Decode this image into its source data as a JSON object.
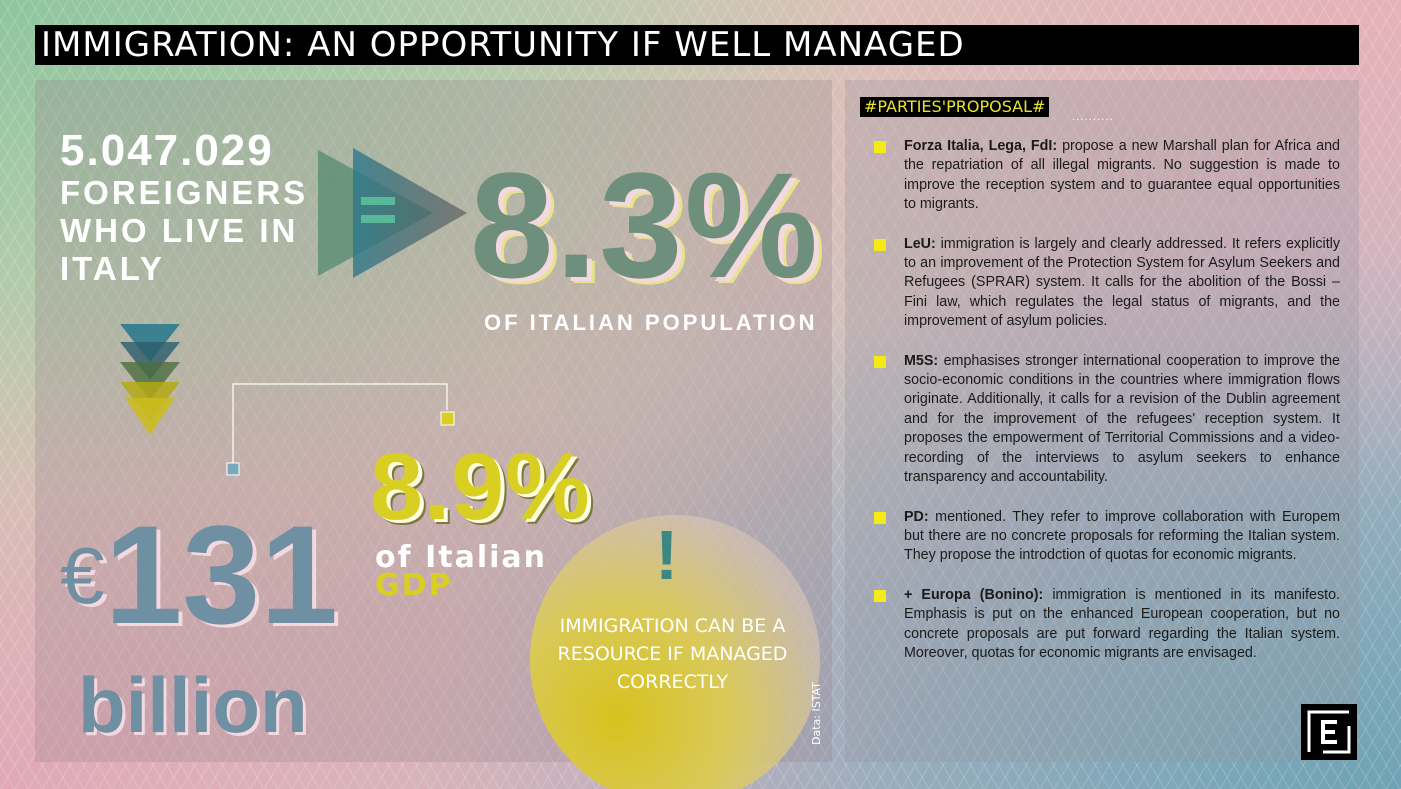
{
  "title": "IMMIGRATION: AN OPPORTUNITY IF WELL MANAGED",
  "left": {
    "foreigners_count": "5.047.029",
    "foreigners_label": "FOREIGNERS WHO LIVE IN ITALY",
    "equals_icon": "equals-icon",
    "population_pct": "8.3%",
    "population_label": "OF ITALIAN POPULATION",
    "gdp_pct": "8.9%",
    "gdp_label_line1": "of Italian",
    "gdp_label_line2": "GDP",
    "euro_symbol": "€",
    "euro_amount": "131",
    "euro_unit": "billion",
    "exclamation": "!",
    "callout": "IMMIGRATION CAN BE A RESOURCE IF MANAGED CORRECTLY",
    "source": "Data: ISTAT"
  },
  "right": {
    "header": "#PARTIES'PROPOSAL#",
    "header_dots": "..........",
    "parties": [
      {
        "name": "Forza Italia, Lega, FdI:",
        "text": " propose a new Marshall plan for Africa and the repatriation of all illegal migrants. No suggestion is made to improve the reception system and to guarantee equal opportunities to migrants."
      },
      {
        "name": "LeU:",
        "text": " immigration is largely and clearly addressed. It refers explicitly to an improvement of the Protection System for Asylum Seekers and Refugees (SPRAR) system. It calls for the abolition of the Bossi – Fini law, which regulates the legal status of migrants, and the improvement of asylum policies."
      },
      {
        "name": "M5S:",
        "text": " emphasises stronger international cooperation to improve the socio-economic conditions in the countries where immigration flows originate. Additionally, it calls for a revision of the Dublin agreement and for the improvement of the refugees' reception system. It proposes the empowerment of Territorial Commissions and a video-recording of the interviews to asylum seekers to enhance transparency and accountability."
      },
      {
        "name": "PD:",
        "text": " mentioned. They refer to improve collaboration with Europem but there are no concrete proposals for reforming the Italian system. They propose the introdction of quotas for economic migrants."
      },
      {
        "name": "+ Europa (Bonino):",
        "text": " immigration is mentioned in its manifesto. Emphasis is put on the enhanced European cooperation, but no concrete proposals are put forward regarding the Italian system. Moreover, quotas for economic migrants are envisaged."
      }
    ]
  },
  "colors": {
    "accent_yellow": "#d8cf22",
    "bullet_yellow": "#f4ea14",
    "green_teal": "#6e8f7c",
    "steel_blue": "#6f8fa2",
    "title_bg": "#000000"
  }
}
